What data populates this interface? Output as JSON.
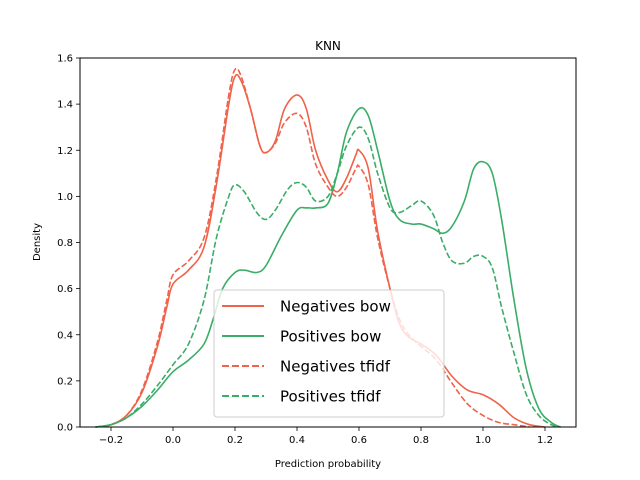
{
  "chart_data": {
    "type": "line",
    "title": "KNN",
    "xlabel": "Prediction probability",
    "ylabel": "Density",
    "xlim": [
      -0.3,
      1.3
    ],
    "ylim": [
      0,
      1.6
    ],
    "xticks": [
      -0.2,
      0.0,
      0.2,
      0.4,
      0.6,
      0.8,
      1.0,
      1.2
    ],
    "xtick_labels": [
      "−0.2",
      "0.0",
      "0.2",
      "0.4",
      "0.6",
      "0.8",
      "1.0",
      "1.2"
    ],
    "yticks": [
      0.0,
      0.2,
      0.4,
      0.6,
      0.8,
      1.0,
      1.2,
      1.4,
      1.6
    ],
    "ytick_labels": [
      "0.0",
      "0.2",
      "0.4",
      "0.6",
      "0.8",
      "1.0",
      "1.2",
      "1.4",
      "1.6"
    ],
    "grid": false,
    "legend_position": "lower-center",
    "series": [
      {
        "name": "Negatives bow",
        "color": "#f0624a",
        "dash": "solid",
        "points": [
          [
            -0.25,
            0.0
          ],
          [
            -0.2,
            0.01
          ],
          [
            -0.15,
            0.05
          ],
          [
            -0.1,
            0.15
          ],
          [
            -0.05,
            0.35
          ],
          [
            -0.02,
            0.52
          ],
          [
            0.0,
            0.62
          ],
          [
            0.05,
            0.68
          ],
          [
            0.1,
            0.78
          ],
          [
            0.14,
            1.05
          ],
          [
            0.18,
            1.4
          ],
          [
            0.2,
            1.52
          ],
          [
            0.22,
            1.5
          ],
          [
            0.25,
            1.38
          ],
          [
            0.28,
            1.22
          ],
          [
            0.3,
            1.19
          ],
          [
            0.33,
            1.24
          ],
          [
            0.36,
            1.38
          ],
          [
            0.4,
            1.44
          ],
          [
            0.43,
            1.38
          ],
          [
            0.46,
            1.2
          ],
          [
            0.5,
            1.07
          ],
          [
            0.53,
            1.02
          ],
          [
            0.56,
            1.08
          ],
          [
            0.59,
            1.18
          ],
          [
            0.6,
            1.2
          ],
          [
            0.63,
            1.12
          ],
          [
            0.66,
            0.85
          ],
          [
            0.7,
            0.6
          ],
          [
            0.73,
            0.45
          ],
          [
            0.76,
            0.39
          ],
          [
            0.8,
            0.36
          ],
          [
            0.85,
            0.31
          ],
          [
            0.9,
            0.22
          ],
          [
            0.95,
            0.16
          ],
          [
            1.0,
            0.14
          ],
          [
            1.05,
            0.1
          ],
          [
            1.1,
            0.04
          ],
          [
            1.15,
            0.01
          ],
          [
            1.2,
            0.0
          ]
        ]
      },
      {
        "name": "Positives bow",
        "color": "#3aad67",
        "dash": "solid",
        "points": [
          [
            -0.25,
            0.0
          ],
          [
            -0.2,
            0.01
          ],
          [
            -0.15,
            0.04
          ],
          [
            -0.1,
            0.09
          ],
          [
            -0.05,
            0.16
          ],
          [
            0.0,
            0.24
          ],
          [
            0.05,
            0.29
          ],
          [
            0.1,
            0.36
          ],
          [
            0.13,
            0.47
          ],
          [
            0.16,
            0.6
          ],
          [
            0.2,
            0.67
          ],
          [
            0.23,
            0.68
          ],
          [
            0.27,
            0.67
          ],
          [
            0.3,
            0.7
          ],
          [
            0.35,
            0.83
          ],
          [
            0.4,
            0.94
          ],
          [
            0.43,
            0.95
          ],
          [
            0.46,
            0.95
          ],
          [
            0.5,
            0.97
          ],
          [
            0.53,
            1.1
          ],
          [
            0.56,
            1.28
          ],
          [
            0.6,
            1.38
          ],
          [
            0.63,
            1.35
          ],
          [
            0.66,
            1.2
          ],
          [
            0.7,
            0.98
          ],
          [
            0.73,
            0.9
          ],
          [
            0.77,
            0.88
          ],
          [
            0.8,
            0.88
          ],
          [
            0.84,
            0.86
          ],
          [
            0.87,
            0.84
          ],
          [
            0.9,
            0.87
          ],
          [
            0.94,
            0.98
          ],
          [
            0.97,
            1.12
          ],
          [
            1.0,
            1.15
          ],
          [
            1.03,
            1.1
          ],
          [
            1.06,
            0.9
          ],
          [
            1.1,
            0.55
          ],
          [
            1.14,
            0.25
          ],
          [
            1.18,
            0.08
          ],
          [
            1.22,
            0.02
          ],
          [
            1.25,
            0.0
          ]
        ]
      },
      {
        "name": "Negatives tfidf",
        "color": "#f0624a",
        "dash": "dashed",
        "points": [
          [
            -0.25,
            0.0
          ],
          [
            -0.2,
            0.01
          ],
          [
            -0.15,
            0.05
          ],
          [
            -0.1,
            0.16
          ],
          [
            -0.05,
            0.37
          ],
          [
            -0.02,
            0.55
          ],
          [
            0.0,
            0.66
          ],
          [
            0.05,
            0.72
          ],
          [
            0.1,
            0.82
          ],
          [
            0.14,
            1.08
          ],
          [
            0.18,
            1.44
          ],
          [
            0.2,
            1.55
          ],
          [
            0.22,
            1.52
          ],
          [
            0.25,
            1.38
          ],
          [
            0.28,
            1.22
          ],
          [
            0.3,
            1.19
          ],
          [
            0.33,
            1.23
          ],
          [
            0.36,
            1.32
          ],
          [
            0.4,
            1.36
          ],
          [
            0.43,
            1.3
          ],
          [
            0.46,
            1.14
          ],
          [
            0.5,
            1.04
          ],
          [
            0.53,
            1.0
          ],
          [
            0.56,
            1.04
          ],
          [
            0.59,
            1.12
          ],
          [
            0.6,
            1.13
          ],
          [
            0.63,
            1.05
          ],
          [
            0.66,
            0.82
          ],
          [
            0.7,
            0.6
          ],
          [
            0.73,
            0.47
          ],
          [
            0.76,
            0.4
          ],
          [
            0.8,
            0.35
          ],
          [
            0.85,
            0.29
          ],
          [
            0.9,
            0.19
          ],
          [
            0.95,
            0.1
          ],
          [
            1.0,
            0.05
          ],
          [
            1.05,
            0.02
          ],
          [
            1.1,
            0.01
          ],
          [
            1.15,
            0.0
          ]
        ]
      },
      {
        "name": "Positives tfidf",
        "color": "#3aad67",
        "dash": "dashed",
        "points": [
          [
            -0.25,
            0.0
          ],
          [
            -0.2,
            0.01
          ],
          [
            -0.15,
            0.04
          ],
          [
            -0.1,
            0.1
          ],
          [
            -0.05,
            0.18
          ],
          [
            0.0,
            0.27
          ],
          [
            0.05,
            0.36
          ],
          [
            0.1,
            0.55
          ],
          [
            0.14,
            0.82
          ],
          [
            0.18,
            1.0
          ],
          [
            0.2,
            1.05
          ],
          [
            0.23,
            1.02
          ],
          [
            0.27,
            0.93
          ],
          [
            0.3,
            0.9
          ],
          [
            0.33,
            0.94
          ],
          [
            0.37,
            1.03
          ],
          [
            0.4,
            1.06
          ],
          [
            0.43,
            1.04
          ],
          [
            0.46,
            0.98
          ],
          [
            0.5,
            1.0
          ],
          [
            0.53,
            1.1
          ],
          [
            0.56,
            1.22
          ],
          [
            0.6,
            1.3
          ],
          [
            0.63,
            1.25
          ],
          [
            0.66,
            1.1
          ],
          [
            0.7,
            0.95
          ],
          [
            0.73,
            0.93
          ],
          [
            0.77,
            0.96
          ],
          [
            0.8,
            0.98
          ],
          [
            0.84,
            0.92
          ],
          [
            0.87,
            0.8
          ],
          [
            0.9,
            0.72
          ],
          [
            0.94,
            0.71
          ],
          [
            0.97,
            0.74
          ],
          [
            1.0,
            0.74
          ],
          [
            1.03,
            0.69
          ],
          [
            1.06,
            0.52
          ],
          [
            1.1,
            0.32
          ],
          [
            1.14,
            0.14
          ],
          [
            1.18,
            0.05
          ],
          [
            1.22,
            0.01
          ],
          [
            1.25,
            0.0
          ]
        ]
      }
    ]
  }
}
